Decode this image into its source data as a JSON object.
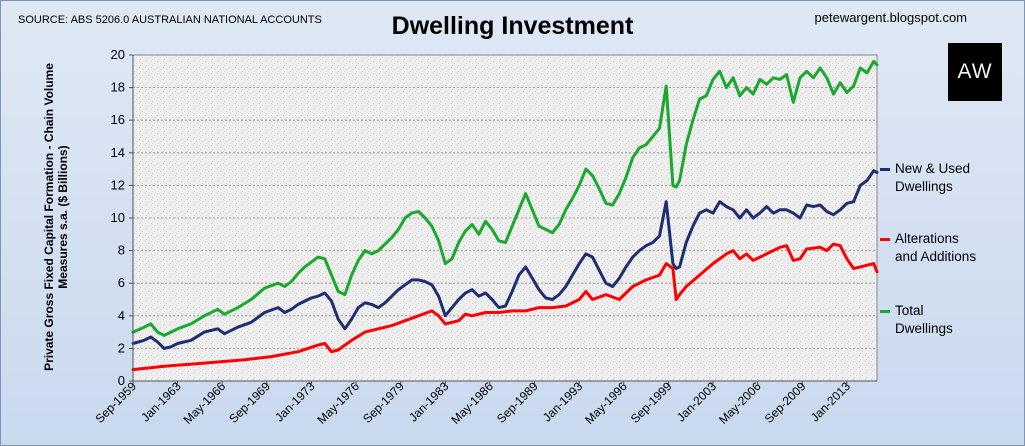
{
  "header": {
    "source": "SOURCE: ABS 5206.0 AUSTRALIAN NATIONAL ACCOUNTS",
    "title": "Dwelling Investment",
    "blog": "petewargent.blogspot.com",
    "logo_text": "AW"
  },
  "chart_data": {
    "type": "line",
    "title": "Dwelling Investment",
    "xlabel": "",
    "ylabel": "Private Gross Fixed Capital Formation - Chain Volume Measures s.a. ($ Billions)",
    "ylabel_lines": [
      "Private Gross Fixed Capital Formation - Chain Volume",
      "Measures s.a. ($ Billions)"
    ],
    "ylim": [
      0,
      20
    ],
    "yticks": [
      0,
      2,
      4,
      6,
      8,
      10,
      12,
      14,
      16,
      18,
      20
    ],
    "xlim": [
      1959.67,
      2015.25
    ],
    "xtick_labels": [
      "Sep-1959",
      "Jan-1963",
      "May-1966",
      "Sep-1969",
      "Jan-1973",
      "May-1976",
      "Sep-1979",
      "Jan-1983",
      "May-1986",
      "Sep-1989",
      "Jan-1993",
      "May-1996",
      "Sep-1999",
      "Jan-2003",
      "May-2006",
      "Sep-2009",
      "Jan-2013"
    ],
    "xtick_positions": [
      1959.67,
      1963.0,
      1966.33,
      1969.67,
      1973.0,
      1976.33,
      1979.67,
      1983.0,
      1986.33,
      1989.67,
      1993.0,
      1996.33,
      1999.67,
      2003.0,
      2006.33,
      2009.67,
      2013.0
    ],
    "grid": true,
    "legend_position": "right",
    "series": [
      {
        "name": "New & Used Dwellings",
        "color": "#1f2e6e",
        "x": [
          1959.67,
          1960.5,
          1961.0,
          1961.5,
          1962.0,
          1962.5,
          1963.0,
          1964.0,
          1965.0,
          1966.0,
          1966.5,
          1967.5,
          1968.5,
          1969.5,
          1970.5,
          1971.0,
          1971.5,
          1972.0,
          1972.5,
          1973.0,
          1973.5,
          1974.0,
          1974.5,
          1975.0,
          1975.5,
          1976.0,
          1976.5,
          1977.0,
          1977.5,
          1978.0,
          1978.5,
          1979.0,
          1979.5,
          1980.0,
          1980.5,
          1981.0,
          1981.5,
          1982.0,
          1982.5,
          1983.0,
          1983.5,
          1984.0,
          1984.5,
          1985.0,
          1985.5,
          1986.0,
          1986.5,
          1987.0,
          1987.5,
          1988.0,
          1988.5,
          1989.0,
          1989.5,
          1990.0,
          1990.5,
          1991.0,
          1991.5,
          1992.0,
          1992.5,
          1993.0,
          1993.5,
          1994.0,
          1994.5,
          1995.0,
          1995.5,
          1996.0,
          1996.5,
          1997.0,
          1997.5,
          1998.0,
          1998.5,
          1999.0,
          1999.5,
          2000.0,
          2000.25,
          2000.5,
          2001.0,
          2001.5,
          2002.0,
          2002.5,
          2003.0,
          2003.5,
          2004.0,
          2004.5,
          2005.0,
          2005.5,
          2006.0,
          2006.5,
          2007.0,
          2007.5,
          2008.0,
          2008.5,
          2009.0,
          2009.5,
          2010.0,
          2010.5,
          2011.0,
          2011.5,
          2012.0,
          2012.5,
          2013.0,
          2013.5,
          2014.0,
          2014.5,
          2015.0,
          2015.25
        ],
        "values": [
          2.3,
          2.5,
          2.7,
          2.4,
          2.0,
          2.1,
          2.3,
          2.5,
          3.0,
          3.2,
          2.9,
          3.3,
          3.6,
          4.2,
          4.5,
          4.2,
          4.4,
          4.7,
          4.9,
          5.1,
          5.2,
          5.4,
          4.9,
          3.8,
          3.2,
          3.8,
          4.5,
          4.8,
          4.7,
          4.5,
          4.8,
          5.2,
          5.6,
          5.9,
          6.2,
          6.2,
          6.1,
          5.9,
          5.2,
          4.0,
          4.5,
          5.0,
          5.4,
          5.6,
          5.2,
          5.4,
          5.0,
          4.5,
          4.6,
          5.5,
          6.5,
          7.0,
          6.3,
          5.6,
          5.1,
          5.0,
          5.3,
          5.8,
          6.5,
          7.2,
          7.8,
          7.6,
          6.8,
          6.0,
          5.8,
          6.3,
          7.0,
          7.6,
          8.0,
          8.3,
          8.5,
          8.9,
          11.0,
          7.2,
          6.9,
          7.0,
          8.5,
          9.5,
          10.3,
          10.5,
          10.3,
          11.0,
          10.7,
          10.5,
          10.0,
          10.5,
          10.0,
          10.3,
          10.7,
          10.3,
          10.5,
          10.5,
          10.3,
          10.0,
          10.8,
          10.7,
          10.8,
          10.4,
          10.2,
          10.5,
          10.9,
          11.0,
          12.0,
          12.3,
          12.9,
          12.8
        ]
      },
      {
        "name": "Alterations and Additions",
        "color": "#ff0000",
        "x": [
          1959.67,
          1962.0,
          1965.0,
          1968.0,
          1970.0,
          1972.0,
          1973.5,
          1974.0,
          1974.5,
          1975.0,
          1976.0,
          1977.0,
          1978.0,
          1979.0,
          1980.0,
          1981.0,
          1982.0,
          1982.5,
          1983.0,
          1984.0,
          1984.5,
          1985.0,
          1986.0,
          1987.0,
          1988.0,
          1989.0,
          1990.0,
          1991.0,
          1992.0,
          1993.0,
          1993.5,
          1994.0,
          1995.0,
          1996.0,
          1997.0,
          1998.0,
          1999.0,
          1999.5,
          2000.0,
          2000.25,
          2000.5,
          2001.0,
          2002.0,
          2003.0,
          2004.0,
          2004.5,
          2005.0,
          2005.5,
          2006.0,
          2007.0,
          2008.0,
          2008.5,
          2009.0,
          2009.5,
          2010.0,
          2011.0,
          2011.5,
          2012.0,
          2012.5,
          2013.0,
          2013.5,
          2014.0,
          2015.0,
          2015.25
        ],
        "values": [
          0.7,
          0.9,
          1.1,
          1.3,
          1.5,
          1.8,
          2.2,
          2.3,
          1.8,
          1.9,
          2.5,
          3.0,
          3.2,
          3.4,
          3.7,
          4.0,
          4.3,
          4.0,
          3.5,
          3.7,
          4.1,
          4.0,
          4.2,
          4.2,
          4.3,
          4.3,
          4.5,
          4.5,
          4.6,
          5.0,
          5.5,
          5.0,
          5.3,
          5.0,
          5.8,
          6.2,
          6.5,
          7.2,
          6.9,
          5.0,
          5.3,
          5.8,
          6.5,
          7.2,
          7.8,
          8.0,
          7.5,
          7.8,
          7.4,
          7.8,
          8.2,
          8.3,
          7.4,
          7.5,
          8.1,
          8.2,
          8.0,
          8.4,
          8.3,
          7.5,
          6.9,
          7.0,
          7.2,
          6.7
        ]
      },
      {
        "name": "Total Dwellings",
        "color": "#1ba82e",
        "x": [
          1959.67,
          1960.5,
          1961.0,
          1961.5,
          1962.0,
          1962.5,
          1963.0,
          1964.0,
          1965.0,
          1966.0,
          1966.5,
          1967.5,
          1968.5,
          1969.5,
          1970.5,
          1971.0,
          1971.5,
          1972.0,
          1972.5,
          1973.0,
          1973.5,
          1974.0,
          1974.5,
          1975.0,
          1975.5,
          1976.0,
          1976.5,
          1977.0,
          1977.5,
          1978.0,
          1978.5,
          1979.0,
          1979.5,
          1980.0,
          1980.5,
          1981.0,
          1981.5,
          1982.0,
          1982.5,
          1983.0,
          1983.5,
          1984.0,
          1984.5,
          1985.0,
          1985.5,
          1986.0,
          1986.5,
          1987.0,
          1987.5,
          1988.0,
          1988.5,
          1989.0,
          1989.5,
          1990.0,
          1990.5,
          1991.0,
          1991.5,
          1992.0,
          1992.5,
          1993.0,
          1993.5,
          1994.0,
          1994.5,
          1995.0,
          1995.5,
          1996.0,
          1996.5,
          1997.0,
          1997.5,
          1998.0,
          1998.5,
          1999.0,
          1999.5,
          2000.0,
          2000.25,
          2000.5,
          2001.0,
          2001.5,
          2002.0,
          2002.5,
          2003.0,
          2003.5,
          2004.0,
          2004.5,
          2005.0,
          2005.5,
          2006.0,
          2006.5,
          2007.0,
          2007.5,
          2008.0,
          2008.5,
          2009.0,
          2009.5,
          2010.0,
          2010.5,
          2011.0,
          2011.5,
          2012.0,
          2012.5,
          2013.0,
          2013.5,
          2014.0,
          2014.5,
          2015.0,
          2015.25
        ],
        "values": [
          3.0,
          3.3,
          3.5,
          3.0,
          2.8,
          3.0,
          3.2,
          3.5,
          4.0,
          4.4,
          4.1,
          4.5,
          5.0,
          5.7,
          6.0,
          5.8,
          6.1,
          6.6,
          7.0,
          7.3,
          7.6,
          7.5,
          6.5,
          5.5,
          5.3,
          6.5,
          7.4,
          8.0,
          7.8,
          8.0,
          8.4,
          8.8,
          9.3,
          10.0,
          10.3,
          10.4,
          10.0,
          9.5,
          8.6,
          7.2,
          7.5,
          8.5,
          9.2,
          9.6,
          9.0,
          9.8,
          9.3,
          8.6,
          8.5,
          9.5,
          10.5,
          11.5,
          10.5,
          9.5,
          9.3,
          9.1,
          9.6,
          10.5,
          11.2,
          12.0,
          13.0,
          12.6,
          11.8,
          10.9,
          10.8,
          11.5,
          12.5,
          13.7,
          14.3,
          14.5,
          15.0,
          15.5,
          18.1,
          12.0,
          11.9,
          12.3,
          14.5,
          16.0,
          17.3,
          17.5,
          18.5,
          19.0,
          18.0,
          18.6,
          17.5,
          18.0,
          17.6,
          18.5,
          18.2,
          18.6,
          18.5,
          18.8,
          17.1,
          18.6,
          19.0,
          18.6,
          19.2,
          18.6,
          17.6,
          18.3,
          17.7,
          18.1,
          19.2,
          18.9,
          19.6,
          19.4
        ]
      }
    ]
  }
}
